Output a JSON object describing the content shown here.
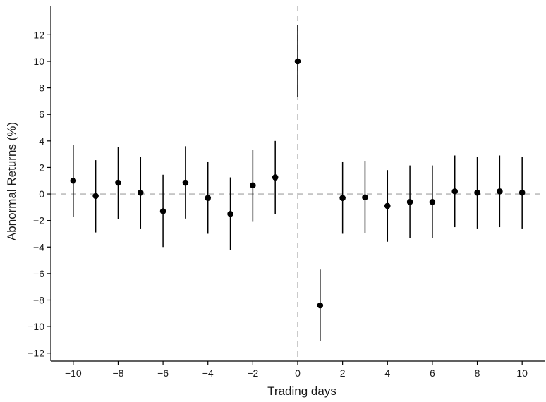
{
  "chart_data": {
    "type": "scatter",
    "title": "",
    "xlabel": "Trading days",
    "ylabel": "Abnormal Returns (%)",
    "xlim": [
      -11,
      11
    ],
    "ylim": [
      -12.6,
      14.2
    ],
    "x_ticks": [
      -10,
      -8,
      -6,
      -4,
      -2,
      0,
      2,
      4,
      6,
      8,
      10
    ],
    "x_tick_labels": [
      "−10",
      "−8",
      "−6",
      "−4",
      "−2",
      "0",
      "2",
      "4",
      "6",
      "8",
      "10"
    ],
    "y_ticks": [
      -12,
      -10,
      -8,
      -6,
      -4,
      -2,
      0,
      2,
      4,
      6,
      8,
      10,
      12
    ],
    "y_tick_labels": [
      "−12",
      "−10",
      "−8",
      "−6",
      "−4",
      "−2",
      "0",
      "2",
      "4",
      "6",
      "8",
      "10",
      "12"
    ],
    "reference_lines": {
      "horizontal": 0,
      "vertical": 0,
      "style": "dashed",
      "color": "#bdbdbd"
    },
    "grid": false,
    "point_color": "#000000",
    "points": [
      {
        "x": -10,
        "y": 1.0,
        "lower": -1.7,
        "upper": 3.7
      },
      {
        "x": -9,
        "y": -0.15,
        "lower": -2.9,
        "upper": 2.55
      },
      {
        "x": -8,
        "y": 0.85,
        "lower": -1.9,
        "upper": 3.55
      },
      {
        "x": -7,
        "y": 0.1,
        "lower": -2.6,
        "upper": 2.8
      },
      {
        "x": -6,
        "y": -1.3,
        "lower": -4.0,
        "upper": 1.45
      },
      {
        "x": -5,
        "y": 0.85,
        "lower": -1.85,
        "upper": 3.6
      },
      {
        "x": -4,
        "y": -0.3,
        "lower": -3.0,
        "upper": 2.45
      },
      {
        "x": -3,
        "y": -1.5,
        "lower": -4.2,
        "upper": 1.25
      },
      {
        "x": -2,
        "y": 0.65,
        "lower": -2.1,
        "upper": 3.35
      },
      {
        "x": -1,
        "y": 1.25,
        "lower": -1.5,
        "upper": 4.0
      },
      {
        "x": 0,
        "y": 10.0,
        "lower": 7.3,
        "upper": 12.75
      },
      {
        "x": 1,
        "y": -8.4,
        "lower": -11.1,
        "upper": -5.7
      },
      {
        "x": 2,
        "y": -0.3,
        "lower": -3.0,
        "upper": 2.45
      },
      {
        "x": 3,
        "y": -0.25,
        "lower": -2.95,
        "upper": 2.5
      },
      {
        "x": 4,
        "y": -0.9,
        "lower": -3.6,
        "upper": 1.8
      },
      {
        "x": 5,
        "y": -0.6,
        "lower": -3.3,
        "upper": 2.15
      },
      {
        "x": 6,
        "y": -0.6,
        "lower": -3.3,
        "upper": 2.15
      },
      {
        "x": 7,
        "y": 0.2,
        "lower": -2.5,
        "upper": 2.9
      },
      {
        "x": 8,
        "y": 0.1,
        "lower": -2.6,
        "upper": 2.8
      },
      {
        "x": 9,
        "y": 0.2,
        "lower": -2.5,
        "upper": 2.9
      },
      {
        "x": 10,
        "y": 0.1,
        "lower": -2.6,
        "upper": 2.8
      }
    ]
  }
}
